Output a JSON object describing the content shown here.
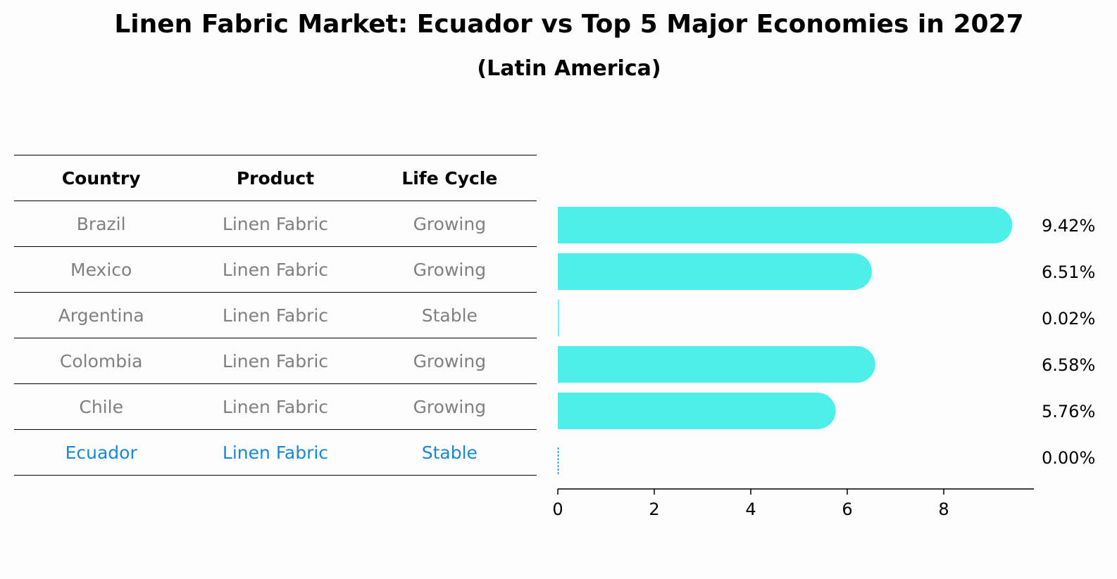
{
  "title": "Linen Fabric Market: Ecuador vs Top 5 Major Economies in 2027",
  "subtitle": "(Latin America)",
  "table": {
    "headers": [
      "Country",
      "Product",
      "Life Cycle"
    ],
    "rows": [
      [
        "Brazil",
        "Linen Fabric",
        "Growing"
      ],
      [
        "Mexico",
        "Linen Fabric",
        "Growing"
      ],
      [
        "Argentina",
        "Linen Fabric",
        "Stable"
      ],
      [
        "Colombia",
        "Linen Fabric",
        "Growing"
      ],
      [
        "Chile",
        "Linen Fabric",
        "Growing"
      ],
      [
        "Ecuador",
        "Linen Fabric",
        "Stable"
      ]
    ],
    "highlight_row": "Ecuador"
  },
  "chart_data": {
    "type": "bar",
    "orientation": "horizontal",
    "categories": [
      "Brazil",
      "Mexico",
      "Argentina",
      "Colombia",
      "Chile",
      "Ecuador"
    ],
    "values": [
      9.42,
      6.51,
      0.02,
      6.58,
      5.76,
      0.0
    ],
    "value_labels": [
      "9.42%",
      "6.51%",
      "0.02%",
      "6.58%",
      "5.76%",
      "0.00%"
    ],
    "xticks": [
      0,
      2,
      4,
      6,
      8
    ],
    "xlim": [
      0,
      9.9
    ],
    "grid": false,
    "bar_color": "#4eeeea",
    "highlight_color": "#1a86d8"
  }
}
